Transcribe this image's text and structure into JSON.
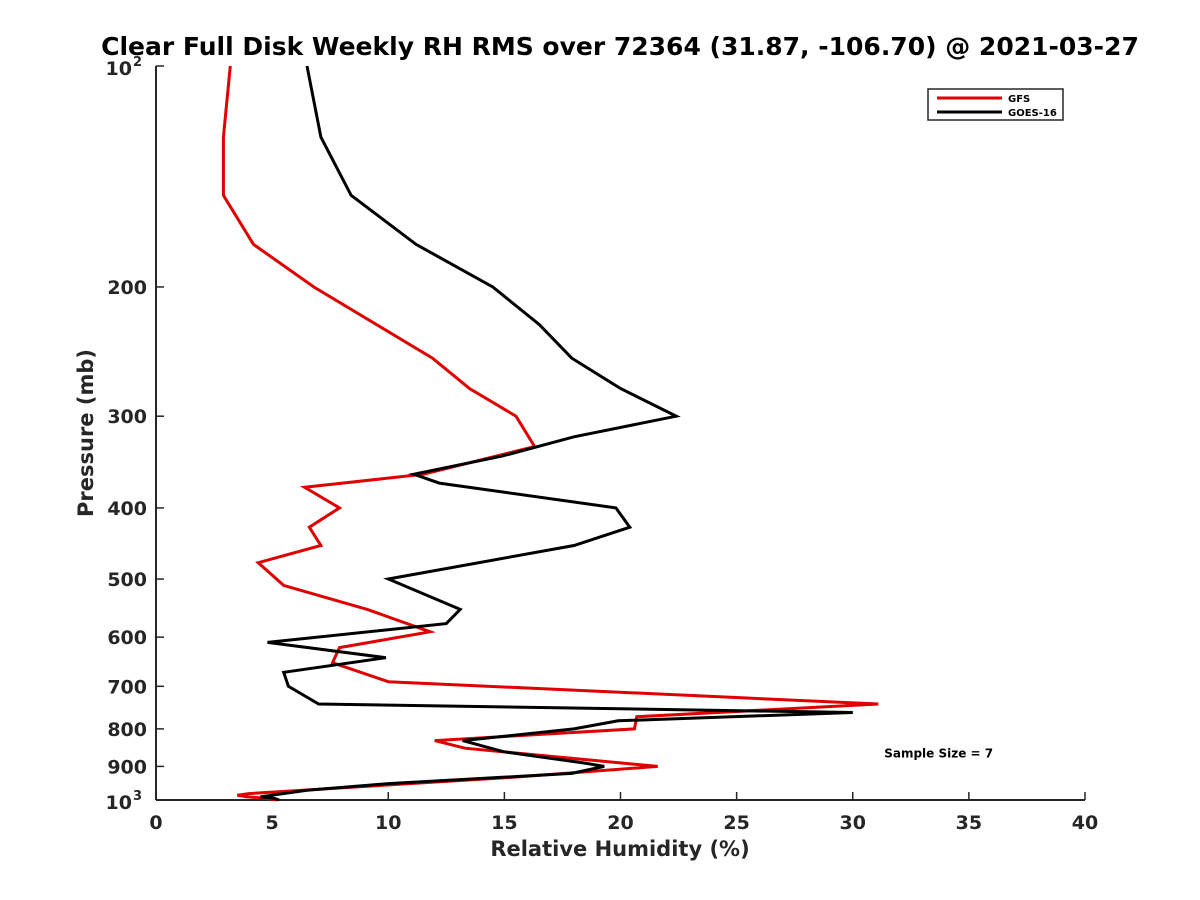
{
  "chart_data": {
    "type": "line",
    "title": "Clear Full Disk Weekly RH RMS over 72364 (31.87, -106.70) @ 2021-03-27",
    "xlabel": "Relative Humidity (%)",
    "ylabel": "Pressure (mb)",
    "xlim": [
      0,
      40
    ],
    "ylim": [
      100,
      1000
    ],
    "y_scale": "log",
    "y_reversed": true,
    "grid": false,
    "legend_position": "top-right",
    "x_ticks": [
      {
        "value": 0,
        "label": "0"
      },
      {
        "value": 5,
        "label": "5"
      },
      {
        "value": 10,
        "label": "10"
      },
      {
        "value": 15,
        "label": "15"
      },
      {
        "value": 20,
        "label": "20"
      },
      {
        "value": 25,
        "label": "25"
      },
      {
        "value": 30,
        "label": "30"
      },
      {
        "value": 35,
        "label": "35"
      },
      {
        "value": 40,
        "label": "40"
      }
    ],
    "y_ticks": [
      {
        "value": 100,
        "label": "10",
        "sup": "2"
      },
      {
        "value": 200,
        "label": "200",
        "sup": ""
      },
      {
        "value": 300,
        "label": "300",
        "sup": ""
      },
      {
        "value": 400,
        "label": "400",
        "sup": ""
      },
      {
        "value": 500,
        "label": "500",
        "sup": ""
      },
      {
        "value": 600,
        "label": "600",
        "sup": ""
      },
      {
        "value": 700,
        "label": "700",
        "sup": ""
      },
      {
        "value": 800,
        "label": "800",
        "sup": ""
      },
      {
        "value": 900,
        "label": "900",
        "sup": ""
      },
      {
        "value": 1000,
        "label": "10",
        "sup": "3"
      }
    ],
    "series": [
      {
        "name": "GFS",
        "color": "#e00000",
        "points": [
          [
            3.2,
            100
          ],
          [
            2.9,
            125
          ],
          [
            2.9,
            150
          ],
          [
            4.2,
            175
          ],
          [
            6.8,
            200
          ],
          [
            11.9,
            250
          ],
          [
            13.5,
            275
          ],
          [
            15.5,
            300
          ],
          [
            16.3,
            330
          ],
          [
            11.5,
            360
          ],
          [
            6.4,
            375
          ],
          [
            7.9,
            400
          ],
          [
            6.6,
            425
          ],
          [
            7.1,
            450
          ],
          [
            4.4,
            475
          ],
          [
            5.5,
            510
          ],
          [
            9.1,
            550
          ],
          [
            11.8,
            590
          ],
          [
            7.9,
            620
          ],
          [
            7.6,
            650
          ],
          [
            10.0,
            690
          ],
          [
            31.1,
            740
          ],
          [
            20.7,
            770
          ],
          [
            20.6,
            800
          ],
          [
            12.0,
            830
          ],
          [
            13.3,
            850
          ],
          [
            21.6,
            900
          ],
          [
            15.6,
            930
          ],
          [
            4.0,
            980
          ],
          [
            3.5,
            985
          ],
          [
            3.9,
            990
          ],
          [
            4.8,
            995
          ],
          [
            5.2,
            1000
          ]
        ]
      },
      {
        "name": "GOES-16",
        "color": "#000000",
        "points": [
          [
            6.5,
            100
          ],
          [
            7.1,
            125
          ],
          [
            8.4,
            150
          ],
          [
            11.2,
            175
          ],
          [
            14.5,
            200
          ],
          [
            16.5,
            225
          ],
          [
            17.9,
            250
          ],
          [
            20.0,
            275
          ],
          [
            22.4,
            300
          ],
          [
            18.0,
            320
          ],
          [
            14.9,
            340
          ],
          [
            11.1,
            360
          ],
          [
            12.2,
            370
          ],
          [
            19.8,
            400
          ],
          [
            20.4,
            425
          ],
          [
            18.0,
            450
          ],
          [
            10.0,
            500
          ],
          [
            13.1,
            550
          ],
          [
            12.5,
            575
          ],
          [
            4.8,
            610
          ],
          [
            9.9,
            640
          ],
          [
            5.5,
            670
          ],
          [
            5.7,
            700
          ],
          [
            7.0,
            740
          ],
          [
            30.0,
            760
          ],
          [
            19.9,
            780
          ],
          [
            18.0,
            800
          ],
          [
            13.2,
            830
          ],
          [
            15.0,
            860
          ],
          [
            18.4,
            890
          ],
          [
            19.3,
            900
          ],
          [
            17.9,
            920
          ],
          [
            10.0,
            950
          ],
          [
            6.5,
            970
          ],
          [
            5.0,
            985
          ],
          [
            4.5,
            990
          ],
          [
            5.1,
            995
          ],
          [
            5.3,
            1000
          ]
        ]
      }
    ],
    "annotations": [
      {
        "text": "Sample Size = 7",
        "x": 33.7,
        "y": 920
      }
    ]
  }
}
